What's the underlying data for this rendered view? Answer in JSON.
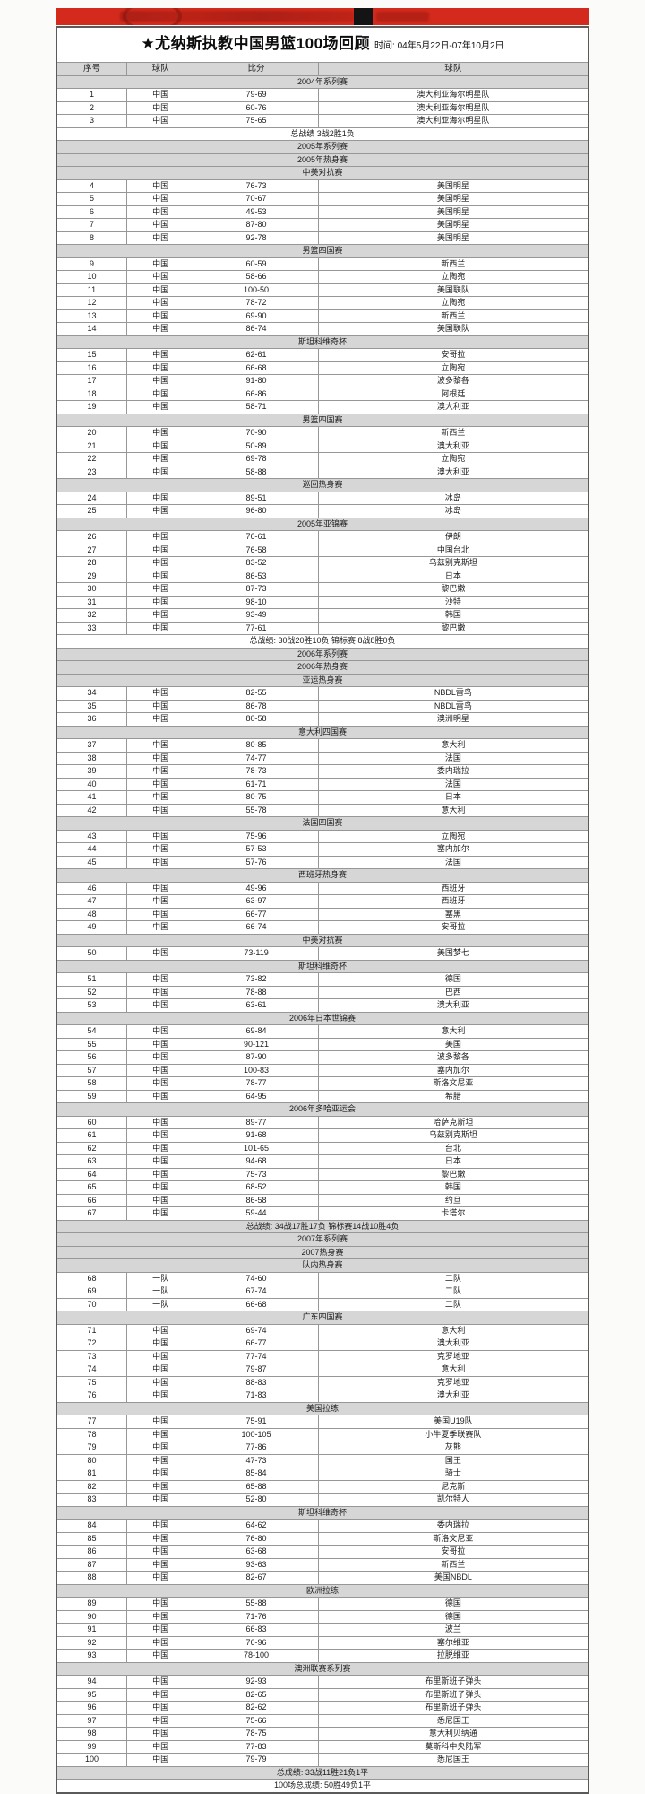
{
  "banner": {
    "color": "#d32a1d",
    "black_block": true
  },
  "title": {
    "main": "★尤纳斯执教中国男篮100场回顾",
    "time": "时间: 04年5月22日-07年10月2日"
  },
  "table": {
    "headers": [
      "序号",
      "球队",
      "比分",
      "球队"
    ],
    "rows": [
      {
        "t": "band",
        "kind": "section",
        "bg": "gray",
        "text": "2004年系列赛"
      },
      {
        "t": "game",
        "no": "1",
        "team1": "中国",
        "score": "79-69",
        "team2": "澳大利亚海尔明星队"
      },
      {
        "t": "game",
        "no": "2",
        "team1": "中国",
        "score": "60-76",
        "team2": "澳大利亚海尔明星队"
      },
      {
        "t": "game",
        "no": "3",
        "team1": "中国",
        "score": "75-65",
        "team2": "澳大利亚海尔明星队"
      },
      {
        "t": "band",
        "kind": "summary",
        "bg": "white",
        "text": "总战绩 3战2胜1负"
      },
      {
        "t": "band",
        "kind": "section",
        "bg": "gray",
        "text": "2005年系列赛"
      },
      {
        "t": "band",
        "kind": "section",
        "bg": "gray",
        "text": "2005年热身赛"
      },
      {
        "t": "band",
        "kind": "section",
        "bg": "gray",
        "text": "中美对抗赛"
      },
      {
        "t": "game",
        "no": "4",
        "team1": "中国",
        "score": "76-73",
        "team2": "美国明星"
      },
      {
        "t": "game",
        "no": "5",
        "team1": "中国",
        "score": "70-67",
        "team2": "美国明星"
      },
      {
        "t": "game",
        "no": "6",
        "team1": "中国",
        "score": "49-53",
        "team2": "美国明星"
      },
      {
        "t": "game",
        "no": "7",
        "team1": "中国",
        "score": "87-80",
        "team2": "美国明星"
      },
      {
        "t": "game",
        "no": "8",
        "team1": "中国",
        "score": "92-78",
        "team2": "美国明星"
      },
      {
        "t": "band",
        "kind": "section",
        "bg": "gray",
        "text": "男篮四国赛"
      },
      {
        "t": "game",
        "no": "9",
        "team1": "中国",
        "score": "60-59",
        "team2": "新西兰"
      },
      {
        "t": "game",
        "no": "10",
        "team1": "中国",
        "score": "58-66",
        "team2": "立陶宛"
      },
      {
        "t": "game",
        "no": "11",
        "team1": "中国",
        "score": "100-50",
        "team2": "美国联队"
      },
      {
        "t": "game",
        "no": "12",
        "team1": "中国",
        "score": "78-72",
        "team2": "立陶宛"
      },
      {
        "t": "game",
        "no": "13",
        "team1": "中国",
        "score": "69-90",
        "team2": "新西兰"
      },
      {
        "t": "game",
        "no": "14",
        "team1": "中国",
        "score": "86-74",
        "team2": "美国联队"
      },
      {
        "t": "band",
        "kind": "section",
        "bg": "gray",
        "text": "斯坦科维奇杯"
      },
      {
        "t": "game",
        "no": "15",
        "team1": "中国",
        "score": "62-61",
        "team2": "安哥拉"
      },
      {
        "t": "game",
        "no": "16",
        "team1": "中国",
        "score": "66-68",
        "team2": "立陶宛"
      },
      {
        "t": "game",
        "no": "17",
        "team1": "中国",
        "score": "91-80",
        "team2": "波多黎各"
      },
      {
        "t": "game",
        "no": "18",
        "team1": "中国",
        "score": "66-86",
        "team2": "阿根廷"
      },
      {
        "t": "game",
        "no": "19",
        "team1": "中国",
        "score": "58-71",
        "team2": "澳大利亚"
      },
      {
        "t": "band",
        "kind": "section",
        "bg": "gray",
        "text": "男篮四国赛"
      },
      {
        "t": "game",
        "no": "20",
        "team1": "中国",
        "score": "70-90",
        "team2": "新西兰"
      },
      {
        "t": "game",
        "no": "21",
        "team1": "中国",
        "score": "50-89",
        "team2": "澳大利亚"
      },
      {
        "t": "game",
        "no": "22",
        "team1": "中国",
        "score": "69-78",
        "team2": "立陶宛"
      },
      {
        "t": "game",
        "no": "23",
        "team1": "中国",
        "score": "58-88",
        "team2": "澳大利亚"
      },
      {
        "t": "band",
        "kind": "section",
        "bg": "gray",
        "text": "巡回热身赛"
      },
      {
        "t": "game",
        "no": "24",
        "team1": "中国",
        "score": "89-51",
        "team2": "冰岛"
      },
      {
        "t": "game",
        "no": "25",
        "team1": "中国",
        "score": "96-80",
        "team2": "冰岛"
      },
      {
        "t": "band",
        "kind": "section",
        "bg": "gray",
        "text": "2005年亚锦赛"
      },
      {
        "t": "game",
        "no": "26",
        "team1": "中国",
        "score": "76-61",
        "team2": "伊朗"
      },
      {
        "t": "game",
        "no": "27",
        "team1": "中国",
        "score": "76-58",
        "team2": "中国台北"
      },
      {
        "t": "game",
        "no": "28",
        "team1": "中国",
        "score": "83-52",
        "team2": "乌兹别克斯坦"
      },
      {
        "t": "game",
        "no": "29",
        "team1": "中国",
        "score": "86-53",
        "team2": "日本"
      },
      {
        "t": "game",
        "no": "30",
        "team1": "中国",
        "score": "87-73",
        "team2": "黎巴嫩"
      },
      {
        "t": "game",
        "no": "31",
        "team1": "中国",
        "score": "98-10",
        "team2": "沙特"
      },
      {
        "t": "game",
        "no": "32",
        "team1": "中国",
        "score": "93-49",
        "team2": "韩国"
      },
      {
        "t": "game",
        "no": "33",
        "team1": "中国",
        "score": "77-61",
        "team2": "黎巴嫩"
      },
      {
        "t": "band",
        "kind": "summary",
        "bg": "white",
        "text": "总战绩: 30战20胜10负 锦标赛 8战8胜0负"
      },
      {
        "t": "band",
        "kind": "section",
        "bg": "gray",
        "text": "2006年系列赛"
      },
      {
        "t": "band",
        "kind": "section",
        "bg": "gray",
        "text": "2006年热身赛"
      },
      {
        "t": "band",
        "kind": "section",
        "bg": "gray",
        "text": "亚运热身赛"
      },
      {
        "t": "game",
        "no": "34",
        "team1": "中国",
        "score": "82-55",
        "team2": "NBDL雷鸟"
      },
      {
        "t": "game",
        "no": "35",
        "team1": "中国",
        "score": "86-78",
        "team2": "NBDL雷鸟"
      },
      {
        "t": "game",
        "no": "36",
        "team1": "中国",
        "score": "80-58",
        "team2": "澳洲明星"
      },
      {
        "t": "band",
        "kind": "section",
        "bg": "gray",
        "text": "意大利四国赛"
      },
      {
        "t": "game",
        "no": "37",
        "team1": "中国",
        "score": "80-85",
        "team2": "意大利"
      },
      {
        "t": "game",
        "no": "38",
        "team1": "中国",
        "score": "74-77",
        "team2": "法国"
      },
      {
        "t": "game",
        "no": "39",
        "team1": "中国",
        "score": "78-73",
        "team2": "委内瑞拉"
      },
      {
        "t": "game",
        "no": "40",
        "team1": "中国",
        "score": "61-71",
        "team2": "法国"
      },
      {
        "t": "game",
        "no": "41",
        "team1": "中国",
        "score": "80-75",
        "team2": "日本"
      },
      {
        "t": "game",
        "no": "42",
        "team1": "中国",
        "score": "55-78",
        "team2": "意大利"
      },
      {
        "t": "band",
        "kind": "section",
        "bg": "gray",
        "text": "法国四国赛"
      },
      {
        "t": "game",
        "no": "43",
        "team1": "中国",
        "score": "75-96",
        "team2": "立陶宛"
      },
      {
        "t": "game",
        "no": "44",
        "team1": "中国",
        "score": "57-53",
        "team2": "塞内加尔"
      },
      {
        "t": "game",
        "no": "45",
        "team1": "中国",
        "score": "57-76",
        "team2": "法国"
      },
      {
        "t": "band",
        "kind": "section",
        "bg": "gray",
        "text": "西班牙热身赛"
      },
      {
        "t": "game",
        "no": "46",
        "team1": "中国",
        "score": "49-96",
        "team2": "西班牙"
      },
      {
        "t": "game",
        "no": "47",
        "team1": "中国",
        "score": "63-97",
        "team2": "西班牙"
      },
      {
        "t": "game",
        "no": "48",
        "team1": "中国",
        "score": "66-77",
        "team2": "塞黑"
      },
      {
        "t": "game",
        "no": "49",
        "team1": "中国",
        "score": "66-74",
        "team2": "安哥拉"
      },
      {
        "t": "band",
        "kind": "section",
        "bg": "gray",
        "text": "中美对抗赛"
      },
      {
        "t": "game",
        "no": "50",
        "team1": "中国",
        "score": "73-119",
        "team2": "美国梦七"
      },
      {
        "t": "band",
        "kind": "section",
        "bg": "gray",
        "text": "斯坦科维奇杯"
      },
      {
        "t": "game",
        "no": "51",
        "team1": "中国",
        "score": "73-82",
        "team2": "德国"
      },
      {
        "t": "game",
        "no": "52",
        "team1": "中国",
        "score": "78-88",
        "team2": "巴西"
      },
      {
        "t": "game",
        "no": "53",
        "team1": "中国",
        "score": "63-61",
        "team2": "澳大利亚"
      },
      {
        "t": "band",
        "kind": "section",
        "bg": "gray",
        "text": "2006年日本世锦赛"
      },
      {
        "t": "game",
        "no": "54",
        "team1": "中国",
        "score": "69-84",
        "team2": "意大利"
      },
      {
        "t": "game",
        "no": "55",
        "team1": "中国",
        "score": "90-121",
        "team2": "美国"
      },
      {
        "t": "game",
        "no": "56",
        "team1": "中国",
        "score": "87-90",
        "team2": "波多黎各"
      },
      {
        "t": "game",
        "no": "57",
        "team1": "中国",
        "score": "100-83",
        "team2": "塞内加尔"
      },
      {
        "t": "game",
        "no": "58",
        "team1": "中国",
        "score": "78-77",
        "team2": "斯洛文尼亚"
      },
      {
        "t": "game",
        "no": "59",
        "team1": "中国",
        "score": "64-95",
        "team2": "希腊"
      },
      {
        "t": "band",
        "kind": "section",
        "bg": "gray",
        "text": "2006年多哈亚运会"
      },
      {
        "t": "game",
        "no": "60",
        "team1": "中国",
        "score": "89-77",
        "team2": "哈萨克斯坦"
      },
      {
        "t": "game",
        "no": "61",
        "team1": "中国",
        "score": "91-68",
        "team2": "乌兹别克斯坦"
      },
      {
        "t": "game",
        "no": "62",
        "team1": "中国",
        "score": "101-65",
        "team2": "台北"
      },
      {
        "t": "game",
        "no": "63",
        "team1": "中国",
        "score": "94-68",
        "team2": "日本"
      },
      {
        "t": "game",
        "no": "64",
        "team1": "中国",
        "score": "75-73",
        "team2": "黎巴嫩"
      },
      {
        "t": "game",
        "no": "65",
        "team1": "中国",
        "score": "68-52",
        "team2": "韩国"
      },
      {
        "t": "game",
        "no": "66",
        "team1": "中国",
        "score": "86-58",
        "team2": "约旦"
      },
      {
        "t": "game",
        "no": "67",
        "team1": "中国",
        "score": "59-44",
        "team2": "卡塔尔"
      },
      {
        "t": "band",
        "kind": "summary",
        "bg": "gray",
        "text": "总战绩: 34战17胜17负 锦标赛14战10胜4负"
      },
      {
        "t": "band",
        "kind": "section",
        "bg": "gray",
        "text": "2007年系列赛"
      },
      {
        "t": "band",
        "kind": "section",
        "bg": "gray",
        "text": "2007热身赛"
      },
      {
        "t": "band",
        "kind": "section",
        "bg": "gray",
        "text": "队内热身赛"
      },
      {
        "t": "game",
        "no": "68",
        "team1": "一队",
        "score": "74-60",
        "team2": "二队"
      },
      {
        "t": "game",
        "no": "69",
        "team1": "一队",
        "score": "67-74",
        "team2": "二队"
      },
      {
        "t": "game",
        "no": "70",
        "team1": "一队",
        "score": "66-68",
        "team2": "二队"
      },
      {
        "t": "band",
        "kind": "section",
        "bg": "gray",
        "text": "广东四国赛"
      },
      {
        "t": "game",
        "no": "71",
        "team1": "中国",
        "score": "69-74",
        "team2": "意大利"
      },
      {
        "t": "game",
        "no": "72",
        "team1": "中国",
        "score": "66-77",
        "team2": "澳大利亚"
      },
      {
        "t": "game",
        "no": "73",
        "team1": "中国",
        "score": "77-74",
        "team2": "克罗地亚"
      },
      {
        "t": "game",
        "no": "74",
        "team1": "中国",
        "score": "79-87",
        "team2": "意大利"
      },
      {
        "t": "game",
        "no": "75",
        "team1": "中国",
        "score": "88-83",
        "team2": "克罗地亚"
      },
      {
        "t": "game",
        "no": "76",
        "team1": "中国",
        "score": "71-83",
        "team2": "澳大利亚"
      },
      {
        "t": "band",
        "kind": "section",
        "bg": "gray",
        "text": "美国拉练"
      },
      {
        "t": "game",
        "no": "77",
        "team1": "中国",
        "score": "75-91",
        "team2": "美国U19队"
      },
      {
        "t": "game",
        "no": "78",
        "team1": "中国",
        "score": "100-105",
        "team2": "小牛夏季联赛队"
      },
      {
        "t": "game",
        "no": "79",
        "team1": "中国",
        "score": "77-86",
        "team2": "灰熊"
      },
      {
        "t": "game",
        "no": "80",
        "team1": "中国",
        "score": "47-73",
        "team2": "国王"
      },
      {
        "t": "game",
        "no": "81",
        "team1": "中国",
        "score": "85-84",
        "team2": "骑士"
      },
      {
        "t": "game",
        "no": "82",
        "team1": "中国",
        "score": "65-88",
        "team2": "尼克斯"
      },
      {
        "t": "game",
        "no": "83",
        "team1": "中国",
        "score": "52-80",
        "team2": "凯尔特人"
      },
      {
        "t": "band",
        "kind": "section",
        "bg": "gray",
        "text": "斯坦科维奇杯"
      },
      {
        "t": "game",
        "no": "84",
        "team1": "中国",
        "score": "64-62",
        "team2": "委内瑞拉"
      },
      {
        "t": "game",
        "no": "85",
        "team1": "中国",
        "score": "76-80",
        "team2": "斯洛文尼亚"
      },
      {
        "t": "game",
        "no": "86",
        "team1": "中国",
        "score": "63-68",
        "team2": "安哥拉"
      },
      {
        "t": "game",
        "no": "87",
        "team1": "中国",
        "score": "93-63",
        "team2": "新西兰"
      },
      {
        "t": "game",
        "no": "88",
        "team1": "中国",
        "score": "82-67",
        "team2": "美国NBDL"
      },
      {
        "t": "band",
        "kind": "section",
        "bg": "gray",
        "text": "欧洲拉练"
      },
      {
        "t": "game",
        "no": "89",
        "team1": "中国",
        "score": "55-88",
        "team2": "德国"
      },
      {
        "t": "game",
        "no": "90",
        "team1": "中国",
        "score": "71-76",
        "team2": "德国"
      },
      {
        "t": "game",
        "no": "91",
        "team1": "中国",
        "score": "66-83",
        "team2": "波兰"
      },
      {
        "t": "game",
        "no": "92",
        "team1": "中国",
        "score": "76-96",
        "team2": "塞尔维亚"
      },
      {
        "t": "game",
        "no": "93",
        "team1": "中国",
        "score": "78-100",
        "team2": "拉脱维亚"
      },
      {
        "t": "band",
        "kind": "section",
        "bg": "gray",
        "text": "澳洲联赛系列赛"
      },
      {
        "t": "game",
        "no": "94",
        "team1": "中国",
        "score": "92-93",
        "team2": "布里斯班子弹头"
      },
      {
        "t": "game",
        "no": "95",
        "team1": "中国",
        "score": "82-65",
        "team2": "布里斯班子弹头"
      },
      {
        "t": "game",
        "no": "96",
        "team1": "中国",
        "score": "82-62",
        "team2": "布里斯班子弹头"
      },
      {
        "t": "game",
        "no": "97",
        "team1": "中国",
        "score": "75-66",
        "team2": "悉尼国王"
      },
      {
        "t": "game",
        "no": "98",
        "team1": "中国",
        "score": "78-75",
        "team2": "意大利贝纳通"
      },
      {
        "t": "game",
        "no": "99",
        "team1": "中国",
        "score": "77-83",
        "team2": "莫斯科中央陆军"
      },
      {
        "t": "game",
        "no": "100",
        "team1": "中国",
        "score": "79-79",
        "team2": "悉尼国王"
      },
      {
        "t": "band",
        "kind": "summary",
        "bg": "gray",
        "text": "总成绩: 33战11胜21负1平"
      },
      {
        "t": "band",
        "kind": "summary",
        "bg": "white",
        "text": "100场总成绩: 50胜49负1平"
      }
    ]
  }
}
